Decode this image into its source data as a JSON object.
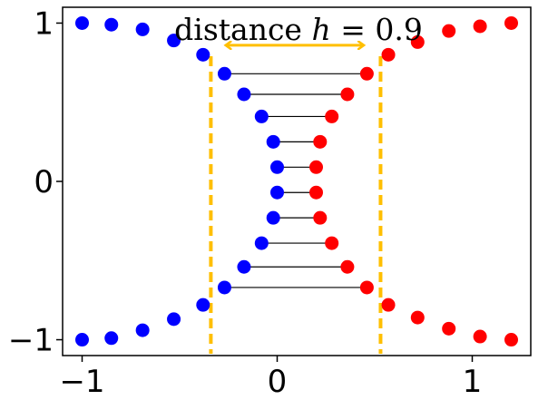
{
  "chart_data": {
    "type": "scatter",
    "title": "",
    "xlabel": "",
    "ylabel": "",
    "xlim": [
      -1.1,
      1.3
    ],
    "ylim": [
      -1.1,
      1.1
    ],
    "grid": false,
    "xticks": [
      {
        "value": -1,
        "label": "−1"
      },
      {
        "value": 0,
        "label": "0"
      },
      {
        "value": 1,
        "label": "1"
      }
    ],
    "yticks": [
      {
        "value": 1,
        "label": "1"
      },
      {
        "value": 0,
        "label": "0"
      },
      {
        "value": -1,
        "label": "−1"
      }
    ],
    "series": [
      {
        "color": "#0000ff",
        "points": [
          [
            -1.0,
            1.0
          ],
          [
            -0.85,
            0.99
          ],
          [
            -0.69,
            0.96
          ],
          [
            -0.53,
            0.89
          ],
          [
            -0.38,
            0.8
          ],
          [
            -0.27,
            0.68
          ],
          [
            -0.17,
            0.55
          ],
          [
            -0.08,
            0.41
          ],
          [
            -0.02,
            0.25
          ],
          [
            0.0,
            0.09
          ],
          [
            0.0,
            -0.07
          ],
          [
            -0.02,
            -0.23
          ],
          [
            -0.08,
            -0.39
          ],
          [
            -0.17,
            -0.54
          ],
          [
            -0.27,
            -0.67
          ],
          [
            -0.38,
            -0.78
          ],
          [
            -0.53,
            -0.87
          ],
          [
            -0.69,
            -0.94
          ],
          [
            -0.85,
            -0.99
          ],
          [
            -1.0,
            -1.0
          ]
        ]
      },
      {
        "color": "#ff0000",
        "points": [
          [
            1.2,
            1.0
          ],
          [
            1.04,
            0.98
          ],
          [
            0.88,
            0.95
          ],
          [
            0.72,
            0.88
          ],
          [
            0.57,
            0.8
          ],
          [
            0.46,
            0.68
          ],
          [
            0.36,
            0.55
          ],
          [
            0.28,
            0.41
          ],
          [
            0.22,
            0.25
          ],
          [
            0.2,
            0.09
          ],
          [
            0.2,
            -0.07
          ],
          [
            0.22,
            -0.23
          ],
          [
            0.28,
            -0.39
          ],
          [
            0.36,
            -0.54
          ],
          [
            0.46,
            -0.67
          ],
          [
            0.57,
            -0.78
          ],
          [
            0.72,
            -0.86
          ],
          [
            0.88,
            -0.93
          ],
          [
            1.04,
            -0.98
          ],
          [
            1.2,
            -1.0
          ]
        ]
      }
    ],
    "connections": [
      {
        "y": 0.68,
        "x1": -0.27,
        "x2": 0.46
      },
      {
        "y": 0.55,
        "x1": -0.17,
        "x2": 0.36
      },
      {
        "y": 0.41,
        "x1": -0.08,
        "x2": 0.28
      },
      {
        "y": 0.25,
        "x1": -0.02,
        "x2": 0.22
      },
      {
        "y": 0.09,
        "x1": 0.0,
        "x2": 0.2
      },
      {
        "y": -0.07,
        "x1": 0.0,
        "x2": 0.2
      },
      {
        "y": -0.23,
        "x1": -0.02,
        "x2": 0.22
      },
      {
        "y": -0.39,
        "x1": -0.08,
        "x2": 0.28
      },
      {
        "y": -0.54,
        "x1": -0.17,
        "x2": 0.36
      },
      {
        "y": -0.67,
        "x1": -0.27,
        "x2": 0.46
      }
    ],
    "boundaries": {
      "x": [
        -0.34,
        0.53
      ],
      "color": "#ffbf00",
      "style": "dashed"
    },
    "distance_arrow": {
      "x1": -0.26,
      "x2": 0.44,
      "y": 0.86,
      "color": "#ffbf00"
    },
    "annotation": {
      "prefix": "distance ",
      "symbol": "h",
      "suffix": " = 0.9"
    }
  }
}
